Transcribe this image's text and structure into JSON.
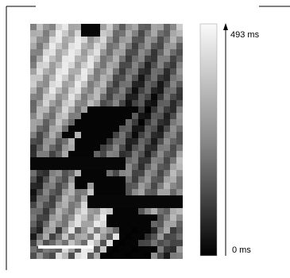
{
  "colorbar": {
    "max_label": "493 ms",
    "min_label": "0 ms"
  }
}
